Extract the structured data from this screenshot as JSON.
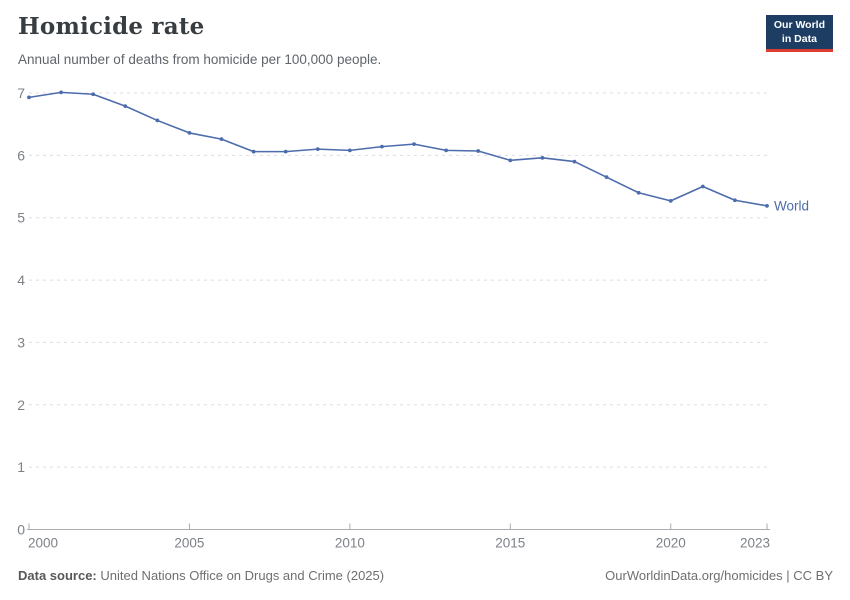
{
  "header": {
    "title": "Homicide rate",
    "subtitle": "Annual number of deaths from homicide per 100,000 people."
  },
  "logo": {
    "line1": "Our World",
    "line2": "in Data",
    "bg_color": "#1d3d63",
    "accent_color": "#dc3c31"
  },
  "chart_data": {
    "type": "line",
    "title": "Homicide rate",
    "subtitle": "Annual number of deaths from homicide per 100,000 people.",
    "x": [
      2000,
      2001,
      2002,
      2003,
      2004,
      2005,
      2006,
      2007,
      2008,
      2009,
      2010,
      2011,
      2012,
      2013,
      2014,
      2015,
      2016,
      2017,
      2018,
      2019,
      2020,
      2021,
      2022,
      2023
    ],
    "series": [
      {
        "name": "World",
        "color": "#4d6cab",
        "values": [
          6.93,
          7.01,
          6.98,
          6.79,
          6.56,
          6.36,
          6.26,
          6.06,
          6.06,
          6.1,
          6.08,
          6.14,
          6.18,
          6.08,
          6.07,
          5.92,
          5.96,
          5.9,
          5.65,
          5.4,
          5.27,
          5.5,
          5.28,
          5.19
        ]
      }
    ],
    "xlabel": "",
    "ylabel": "",
    "ylim": [
      0,
      7
    ],
    "yticks": [
      0,
      1,
      2,
      3,
      4,
      5,
      6,
      7
    ],
    "xticks": [
      2000,
      2005,
      2010,
      2015,
      2020,
      2023
    ],
    "grid": "horizontal-dashed",
    "legend": "end-of-line-label",
    "colors": {
      "grid": "#dcdee0",
      "axis": "#a8adb2",
      "tick_label": "#7d8288"
    }
  },
  "footer": {
    "source_label": "Data source:",
    "source_value": " United Nations Office on Drugs and Crime (2025)",
    "right": "OurWorldinData.org/homicides | CC BY"
  }
}
